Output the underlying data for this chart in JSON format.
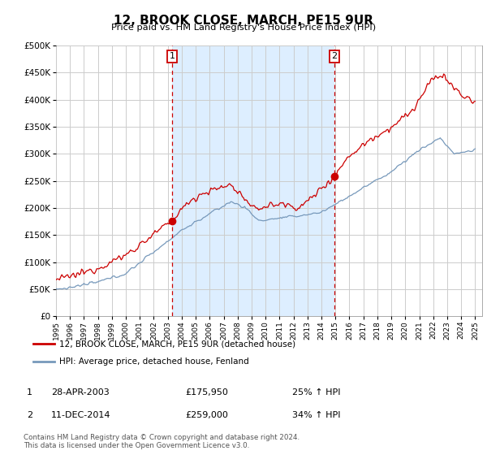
{
  "title": "12, BROOK CLOSE, MARCH, PE15 9UR",
  "subtitle": "Price paid vs. HM Land Registry's House Price Index (HPI)",
  "legend_line1": "12, BROOK CLOSE, MARCH, PE15 9UR (detached house)",
  "legend_line2": "HPI: Average price, detached house, Fenland",
  "footer1": "Contains HM Land Registry data © Crown copyright and database right 2024.",
  "footer2": "This data is licensed under the Open Government Licence v3.0.",
  "sale1_date": "28-APR-2003",
  "sale1_price": "£175,950",
  "sale1_hpi": "25% ↑ HPI",
  "sale2_date": "11-DEC-2014",
  "sale2_price": "£259,000",
  "sale2_hpi": "34% ↑ HPI",
  "sale1_x": 2003.3,
  "sale1_y": 175950,
  "sale2_x": 2014.92,
  "sale2_y": 259000,
  "red_color": "#cc0000",
  "blue_color": "#7799bb",
  "plot_bg": "#ffffff",
  "shade_color": "#ddeeff",
  "grid_color": "#cccccc",
  "vline_color": "#cc0000",
  "ylim": [
    0,
    500000
  ],
  "xlim_start": 1995,
  "xlim_end": 2025.5,
  "yticks": [
    0,
    50000,
    100000,
    150000,
    200000,
    250000,
    300000,
    350000,
    400000,
    450000,
    500000
  ],
  "xticks": [
    1995,
    1996,
    1997,
    1998,
    1999,
    2000,
    2001,
    2002,
    2003,
    2004,
    2005,
    2006,
    2007,
    2008,
    2009,
    2010,
    2011,
    2012,
    2013,
    2014,
    2015,
    2016,
    2017,
    2018,
    2019,
    2020,
    2021,
    2022,
    2023,
    2024,
    2025
  ]
}
